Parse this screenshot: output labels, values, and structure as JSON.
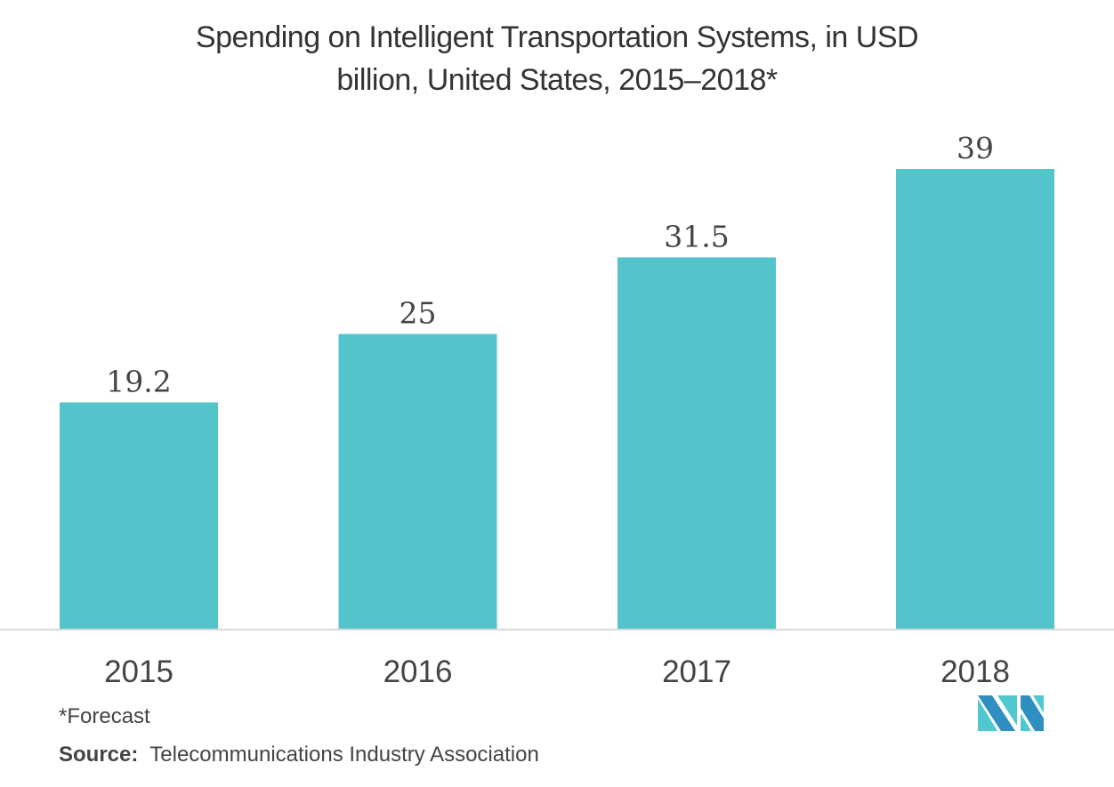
{
  "chart_data": {
    "type": "bar",
    "title": "Spending on Intelligent Transportation Systems, in USD billion, United States, 2015–2018*",
    "title_lines": [
      "Spending on Intelligent Transportation Systems, in USD",
      "billion, United States, 2015–2018*"
    ],
    "categories": [
      "2015",
      "2016",
      "2017",
      "2018"
    ],
    "values": [
      19.2,
      25,
      31.5,
      39
    ],
    "data_labels": [
      "19.2",
      "25",
      "31.5",
      "39"
    ],
    "xlabel": "",
    "ylabel": "",
    "ylim": [
      0,
      39
    ],
    "grid": false,
    "bar_color": "#52C4CA",
    "axis_color": "#d9d9d9"
  },
  "footnote": "*Forecast",
  "source": {
    "label": "Source:",
    "text": "Telecommunications Industry Association"
  },
  "logo": {
    "colors": [
      "#2E8FC0",
      "#4FC8D0"
    ]
  }
}
